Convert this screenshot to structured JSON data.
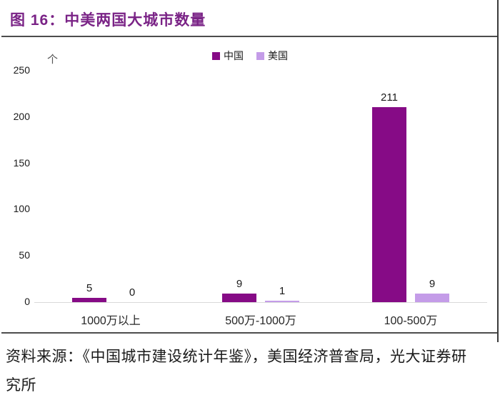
{
  "figure": {
    "title": "图 16：中美两国大城市数量"
  },
  "chart_data": {
    "type": "bar",
    "title": "中美两国大城市数量",
    "unit_label": "个",
    "categories": [
      "1000万以上",
      "500万-1000万",
      "100-500万"
    ],
    "series": [
      {
        "name": "中国",
        "color": "#860B86",
        "values": [
          5,
          9,
          211
        ]
      },
      {
        "name": "美国",
        "color": "#C49CE8",
        "values": [
          0,
          1,
          9
        ]
      }
    ],
    "ylim": [
      0,
      250
    ],
    "yticks": [
      0,
      50,
      100,
      150,
      200,
      250
    ],
    "legend_position": "top",
    "grid": false,
    "xlabel": "",
    "ylabel": ""
  },
  "source": {
    "text": "资料来源：《中国城市建设统计年鉴》，美国经济普查局，光大证券研究所"
  }
}
